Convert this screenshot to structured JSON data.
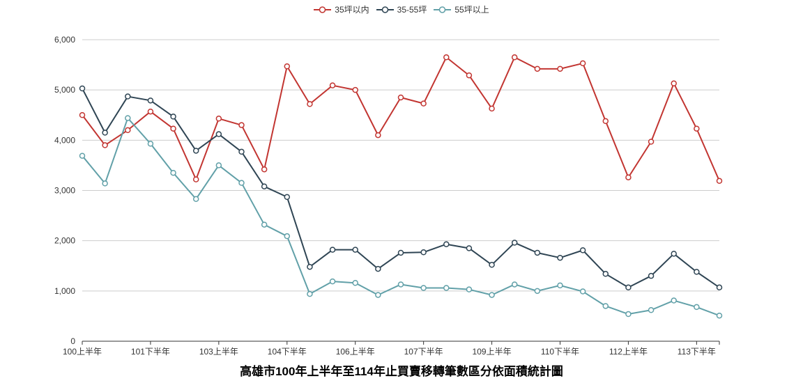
{
  "legend": {
    "items": [
      {
        "label": "35坪以内",
        "color": "#c23531"
      },
      {
        "label": "35-55坪",
        "color": "#2f4554"
      },
      {
        "label": "55坪以上",
        "color": "#61a0a8"
      }
    ]
  },
  "chart_data": {
    "type": "line",
    "title": "高雄市100年上半年至114年止買賣移轉筆數區分依面積統計圖",
    "legend_position": "top",
    "grid": true,
    "ylim": [
      0,
      6000
    ],
    "y_ticks": [
      0,
      1000,
      2000,
      3000,
      4000,
      5000,
      6000
    ],
    "y_tick_labels": [
      "0",
      "1,000",
      "2,000",
      "3,000",
      "4,000",
      "5,000",
      "6,000"
    ],
    "x_label_interval": 3,
    "x_tick_labels_shown": [
      "100上半年",
      "101下半年",
      "103上半年",
      "104下半年",
      "106上半年",
      "107下半年",
      "109上半年",
      "110下半年",
      "112上半年",
      "113下半年"
    ],
    "categories": [
      "100上半年",
      "100下半年",
      "101上半年",
      "101下半年",
      "102上半年",
      "102下半年",
      "103上半年",
      "103下半年",
      "104上半年",
      "104下半年",
      "105上半年",
      "105下半年",
      "106上半年",
      "106下半年",
      "107上半年",
      "107下半年",
      "108上半年",
      "108下半年",
      "109上半年",
      "109下半年",
      "110上半年",
      "110下半年",
      "111上半年",
      "111下半年",
      "112上半年",
      "112下半年",
      "113上半年",
      "113下半年",
      "114上半年"
    ],
    "series": [
      {
        "name": "35坪以内",
        "color": "#c23531",
        "values": [
          4500,
          3900,
          4200,
          4570,
          4230,
          3220,
          4430,
          4300,
          3420,
          5470,
          4720,
          5090,
          5000,
          4100,
          4850,
          4730,
          5650,
          5290,
          4630,
          5650,
          5420,
          5420,
          5530,
          4380,
          3260,
          3970,
          5130,
          4230,
          3190
        ]
      },
      {
        "name": "35-55坪",
        "color": "#2f4554",
        "values": [
          5030,
          4150,
          4870,
          4790,
          4470,
          3790,
          4120,
          3770,
          3080,
          2870,
          1480,
          1820,
          1820,
          1440,
          1760,
          1770,
          1930,
          1850,
          1520,
          1960,
          1760,
          1660,
          1810,
          1340,
          1070,
          1300,
          1740,
          1380,
          1070
        ]
      },
      {
        "name": "55坪以上",
        "color": "#61a0a8",
        "values": [
          3690,
          3140,
          4440,
          3930,
          3350,
          2830,
          3500,
          3150,
          2320,
          2090,
          940,
          1190,
          1160,
          920,
          1130,
          1060,
          1060,
          1030,
          920,
          1130,
          1000,
          1110,
          990,
          700,
          540,
          620,
          810,
          680,
          510
        ]
      }
    ]
  }
}
